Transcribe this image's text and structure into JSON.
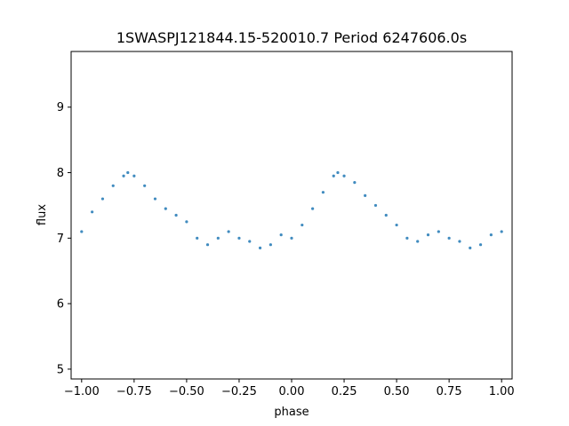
{
  "chart_data": {
    "type": "scatter",
    "title": "1SWASPJ121844.15-520010.7 Period 6247606.0s",
    "xlabel": "phase",
    "ylabel": "flux",
    "xlim": [
      -1.05,
      1.05
    ],
    "ylim": [
      4.85,
      9.85
    ],
    "xticks": [
      -1.0,
      -0.75,
      -0.5,
      -0.25,
      0.0,
      0.25,
      0.5,
      0.75,
      1.0
    ],
    "xtick_labels": [
      "−1.00",
      "−0.75",
      "−0.50",
      "−0.25",
      "0.00",
      "0.25",
      "0.50",
      "0.75",
      "1.00"
    ],
    "yticks": [
      5,
      6,
      7,
      8,
      9
    ],
    "ytick_labels": [
      "5",
      "6",
      "7",
      "8",
      "9"
    ],
    "grid": false,
    "marker_color": "#1f77b4",
    "series": [
      {
        "x": [
          -1.0,
          -0.95,
          -0.9,
          -0.85,
          -0.8,
          -0.78,
          -0.75,
          -0.7,
          -0.65,
          -0.6,
          -0.55,
          -0.5,
          -0.45,
          -0.4,
          -0.35,
          -0.3,
          -0.25,
          -0.2,
          -0.15,
          -0.1,
          -0.05,
          0.0,
          0.05,
          0.1,
          0.15,
          0.2,
          0.22,
          0.25,
          0.3,
          0.35,
          0.4,
          0.45,
          0.5,
          0.55,
          0.6,
          0.65,
          0.7,
          0.75,
          0.8,
          0.85,
          0.9,
          0.95,
          1.0
        ],
        "y": [
          7.1,
          7.4,
          7.6,
          7.8,
          7.95,
          8.0,
          7.95,
          7.8,
          7.6,
          7.45,
          7.35,
          7.25,
          7.0,
          6.9,
          7.0,
          7.1,
          7.0,
          6.95,
          6.85,
          6.9,
          7.05,
          7.0,
          7.2,
          7.45,
          7.7,
          7.95,
          8.0,
          7.95,
          7.85,
          7.65,
          7.5,
          7.35,
          7.2,
          7.0,
          6.95,
          7.05,
          7.1,
          7.0,
          6.95,
          6.85,
          6.9,
          7.05,
          7.1
        ]
      }
    ]
  }
}
